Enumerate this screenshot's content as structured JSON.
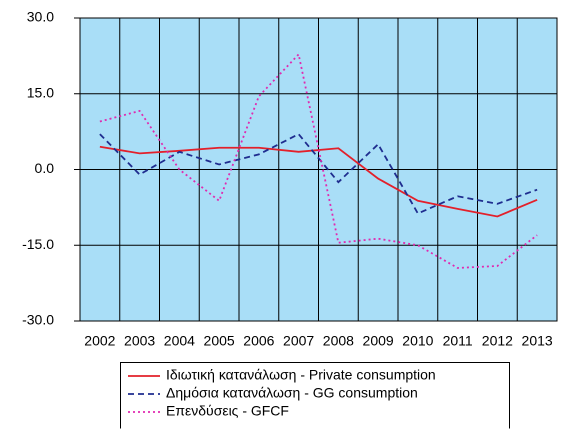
{
  "chart_data": {
    "type": "line",
    "categories": [
      "2002",
      "2003",
      "2004",
      "2005",
      "2006",
      "2007",
      "2008",
      "2009",
      "2010",
      "2011",
      "2012",
      "2013"
    ],
    "series": [
      {
        "name": "Ιδιωτική κατανάλωση - Private consumption",
        "color": "#e3202a",
        "dash": "solid",
        "values": [
          4.5,
          3.2,
          3.7,
          4.3,
          4.3,
          3.5,
          4.2,
          -1.8,
          -6.2,
          -7.8,
          -9.3,
          -6.0
        ]
      },
      {
        "name": "Δημόσια κατανάλωση - GG consumption",
        "color": "#1f2d8f",
        "dash": "dashed",
        "values": [
          7.0,
          -1.0,
          3.5,
          1.0,
          3.0,
          7.0,
          -2.5,
          5.0,
          -8.7,
          -5.3,
          -6.8,
          -4.0
        ]
      },
      {
        "name": "Επενδύσεις - GFCF",
        "color": "#e02ab0",
        "dash": "dotted",
        "values": [
          9.5,
          11.6,
          0.0,
          -6.2,
          14.5,
          22.8,
          -14.5,
          -13.7,
          -15.0,
          -19.5,
          -19.1,
          -13.0
        ]
      }
    ],
    "ylim": [
      -30,
      30
    ],
    "yticks": [
      {
        "value": -30,
        "label": "-30.0"
      },
      {
        "value": -15,
        "label": "-15.0"
      },
      {
        "value": 0,
        "label": "0.0"
      },
      {
        "value": 15,
        "label": "15.0"
      },
      {
        "value": 30,
        "label": "30.0"
      }
    ],
    "grid": true,
    "legend": "bottom",
    "plot_background": "#a9def7"
  }
}
